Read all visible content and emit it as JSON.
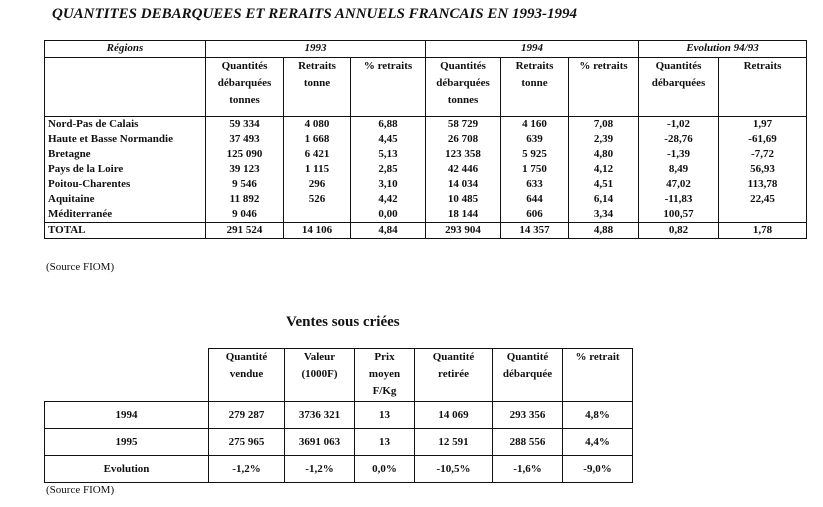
{
  "title": "QUANTITES DEBARQUEES ET RERAITS ANNUELS FRANCAIS EN 1993-1994",
  "table1": {
    "group_headers": [
      "Régions",
      "1993",
      "1994",
      "Evolution 94/93"
    ],
    "sub_headers": [
      "Quantités débarquées tonnes",
      "Retraits tonne",
      "% retraits",
      "Quantités débarquées tonnes",
      "Retraits tonne",
      "% retraits",
      "Quantités débarquées",
      "Retraits"
    ],
    "rows": [
      [
        "Nord-Pas de Calais",
        "59 334",
        "4 080",
        "6,88",
        "58 729",
        "4 160",
        "7,08",
        "-1,02",
        "1,97"
      ],
      [
        "Haute et Basse Normandie",
        "37 493",
        "1 668",
        "4,45",
        "26 708",
        "639",
        "2,39",
        "-28,76",
        "-61,69"
      ],
      [
        "Bretagne",
        "125 090",
        "6 421",
        "5,13",
        "123 358",
        "5 925",
        "4,80",
        "-1,39",
        "-7,72"
      ],
      [
        "Pays de la Loire",
        "39 123",
        "1 115",
        "2,85",
        "42 446",
        "1 750",
        "4,12",
        "8,49",
        "56,93"
      ],
      [
        "Poitou-Charentes",
        "9 546",
        "296",
        "3,10",
        "14 034",
        "633",
        "4,51",
        "47,02",
        "113,78"
      ],
      [
        "Aquitaine",
        "11 892",
        "526",
        "4,42",
        "10 485",
        "644",
        "6,14",
        "-11,83",
        "22,45"
      ],
      [
        "Méditerranée",
        "9 046",
        null,
        "0,00",
        "18 144",
        "606",
        "3,34",
        "100,57",
        null
      ]
    ],
    "total": [
      "TOTAL",
      "291 524",
      "14 106",
      "4,84",
      "293 904",
      "14 357",
      "4,88",
      "0,82",
      "1,78"
    ]
  },
  "source1": "(Source FIOM)",
  "table2_title": "Ventes sous criées",
  "table2": {
    "headers": [
      "Quantité vendue",
      "Valeur (1000F)",
      "Prix moyen F/Kg",
      "Quantité retirée",
      "Quantité débarquée",
      "% retrait"
    ],
    "rows": [
      [
        "1994",
        "279 287",
        "3736 321",
        "13",
        "14 069",
        "293 356",
        "4,8%"
      ],
      [
        "1995",
        "275 965",
        "3691 063",
        "13",
        "12 591",
        "288 556",
        "4,4%"
      ],
      [
        "Evolution",
        "-1,2%",
        "-1,2%",
        "0,0%",
        "-10,5%",
        "-1,6%",
        "-9,0%"
      ]
    ]
  },
  "source2": "(Source FIOM)"
}
